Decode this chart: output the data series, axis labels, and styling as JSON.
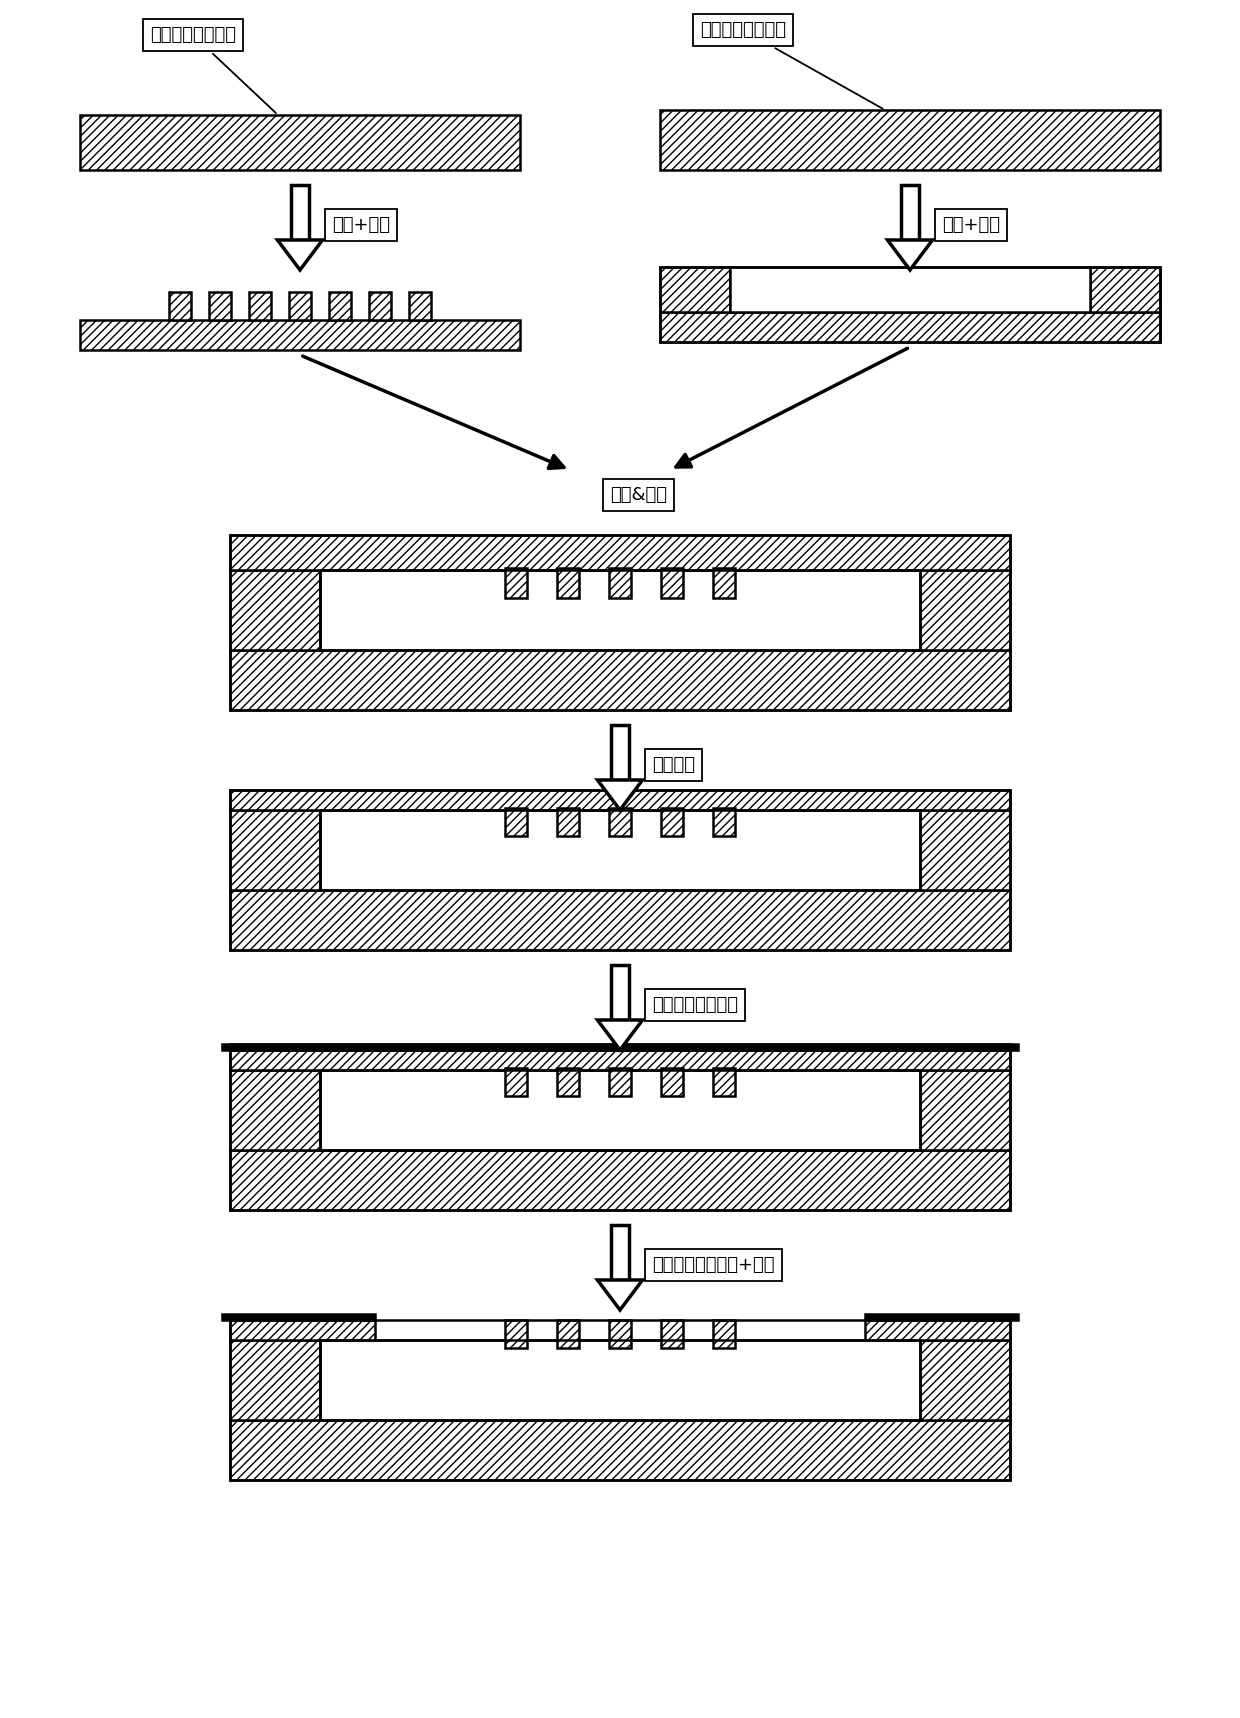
{
  "bg_color": "#ffffff",
  "hatch_pattern": "////",
  "face_color": "#ffffff",
  "line_color": "#000000",
  "label1": "第一双面抛光硅片",
  "label2": "第二双面抛光硅片",
  "step1_label": "光刻+刻蚀",
  "step2_label": "光刻+刻蚀",
  "step3_label": "氧化&键合",
  "step4_label": "减薄抛光",
  "step5_label": "金属沉积及图形化",
  "step6_label": "器件层结构的光刻+刻蚀",
  "fig_width": 12.4,
  "fig_height": 17.18,
  "lw": 1.8,
  "arrow_lw": 2.5
}
